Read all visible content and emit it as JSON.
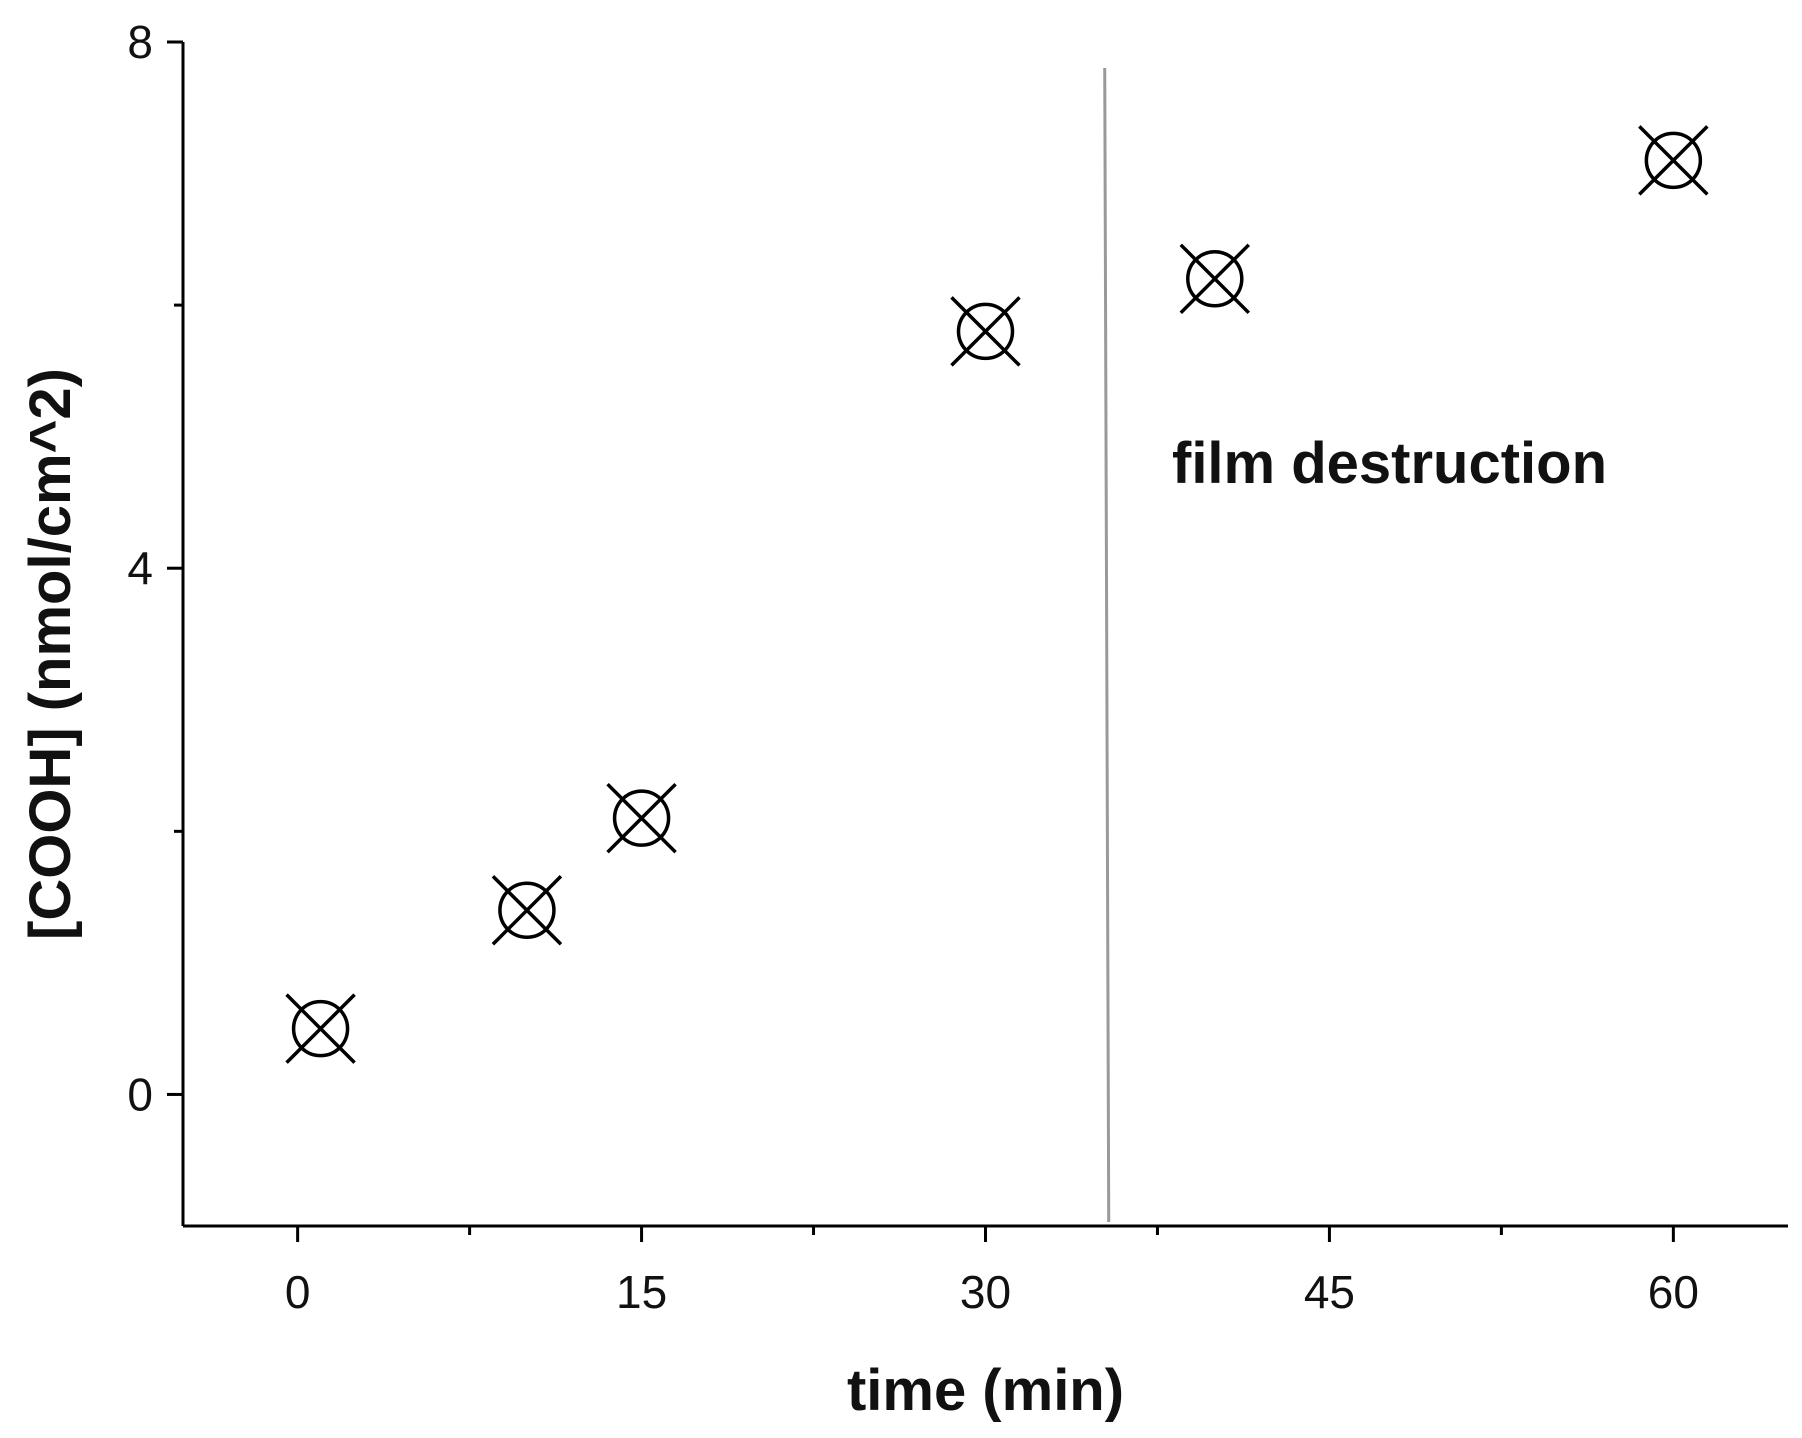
{
  "chart_data": {
    "type": "scatter",
    "title": "",
    "xlabel": "time (min)",
    "ylabel": "[COOH] (nmol/cm^2)",
    "xlim": [
      -5,
      65
    ],
    "ylim": [
      -1,
      8
    ],
    "x_ticks": [
      0,
      15,
      30,
      45,
      60
    ],
    "y_ticks": [
      0,
      4,
      8
    ],
    "grid": false,
    "legend": "none",
    "series": [
      {
        "marker": "circle-x",
        "x": [
          1,
          10,
          15,
          30,
          40,
          60
        ],
        "y": [
          0.5,
          1.4,
          2.1,
          5.8,
          6.2,
          7.1
        ]
      }
    ],
    "annotations": [
      {
        "type": "vertical-line",
        "x": 35.2,
        "color": "#999999"
      },
      {
        "type": "text",
        "text": "film destruction"
      }
    ]
  }
}
